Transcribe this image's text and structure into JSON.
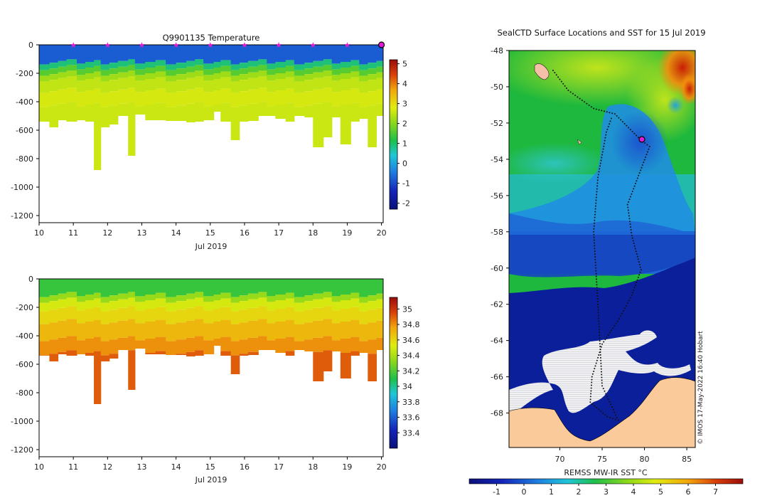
{
  "chart_data": [
    {
      "type": "heatmap",
      "title": "Q9901135  Temperature",
      "xlabel": "Jul 2019",
      "x_ticks": [
        10,
        11,
        12,
        13,
        14,
        15,
        16,
        17,
        18,
        19,
        20
      ],
      "xlim": [
        10,
        20.05
      ],
      "ylim": [
        -1250,
        0
      ],
      "y_ticks": [
        0,
        -200,
        -400,
        -600,
        -800,
        -1000,
        -1200
      ],
      "colorbar": {
        "ticks": [
          5,
          4,
          3,
          2,
          1,
          0,
          -1,
          -2
        ],
        "range": [
          -2.3,
          5.2
        ]
      },
      "surface_value": -0.8,
      "layers": [
        {
          "top": 0,
          "bottom": -120,
          "value": -0.8
        },
        {
          "top": -120,
          "bottom": -160,
          "value": 0.9
        },
        {
          "top": -160,
          "bottom": -200,
          "value": 1.6
        },
        {
          "top": -200,
          "bottom": -240,
          "value": 2.2
        },
        {
          "top": -240,
          "bottom": -320,
          "value": 2.5
        },
        {
          "top": -320,
          "bottom": -420,
          "value": 2.7
        },
        {
          "top": -420,
          "bottom": -2000,
          "value": 2.6
        }
      ],
      "profile_times": [
        10,
        10.3,
        10.55,
        10.8,
        11.1,
        11.35,
        11.6,
        11.8,
        12.05,
        12.3,
        12.6,
        12.8,
        13.1,
        13.4,
        13.7,
        14,
        14.3,
        14.55,
        14.8,
        15.1,
        15.3,
        15.6,
        15.85,
        16.1,
        16.4,
        16.65,
        16.9,
        17.2,
        17.45,
        17.75,
        18,
        18.3,
        18.55,
        18.8,
        19.1,
        19.35,
        19.6,
        19.85,
        20.05
      ],
      "profile_depths": [
        540,
        580,
        530,
        540,
        530,
        540,
        880,
        580,
        560,
        500,
        780,
        490,
        530,
        530,
        535,
        535,
        545,
        540,
        530,
        470,
        540,
        670,
        540,
        535,
        500,
        500,
        520,
        540,
        500,
        510,
        720,
        650,
        510,
        700,
        540,
        520,
        720,
        500,
        500
      ],
      "markers": [
        11,
        12,
        13,
        14,
        15,
        16,
        17,
        18,
        19
      ],
      "current_marker": 20
    },
    {
      "type": "heatmap",
      "title": "",
      "xlabel": "Jul 2019",
      "x_ticks": [
        10,
        11,
        12,
        13,
        14,
        15,
        16,
        17,
        18,
        19,
        20
      ],
      "xlim": [
        10,
        20.05
      ],
      "ylim": [
        -1250,
        0
      ],
      "y_ticks": [
        0,
        -200,
        -400,
        -600,
        -800,
        -1000,
        -1200
      ],
      "colorbar": {
        "ticks": [
          35,
          34.8,
          34.6,
          34.4,
          34.2,
          34,
          33.8,
          33.6,
          33.4
        ],
        "range": [
          33.2,
          35.15
        ]
      },
      "layers": [
        {
          "top": 0,
          "bottom": -110,
          "value": 34.15
        },
        {
          "top": -110,
          "bottom": -150,
          "value": 34.35
        },
        {
          "top": -150,
          "bottom": -210,
          "value": 34.5
        },
        {
          "top": -210,
          "bottom": -300,
          "value": 34.6
        },
        {
          "top": -300,
          "bottom": -420,
          "value": 34.7
        },
        {
          "top": -420,
          "bottom": -520,
          "value": 34.8
        },
        {
          "top": -520,
          "bottom": -2000,
          "value": 34.9
        }
      ],
      "profile_times": [
        10,
        10.3,
        10.55,
        10.8,
        11.1,
        11.35,
        11.6,
        11.8,
        12.05,
        12.3,
        12.6,
        12.8,
        13.1,
        13.4,
        13.7,
        14,
        14.3,
        14.55,
        14.8,
        15.1,
        15.3,
        15.6,
        15.85,
        16.1,
        16.4,
        16.65,
        16.9,
        17.2,
        17.45,
        17.75,
        18,
        18.3,
        18.55,
        18.8,
        19.1,
        19.35,
        19.6,
        19.85,
        20.05
      ],
      "profile_depths": [
        540,
        580,
        530,
        540,
        530,
        540,
        880,
        580,
        560,
        500,
        780,
        490,
        530,
        530,
        535,
        535,
        545,
        540,
        530,
        470,
        540,
        670,
        540,
        535,
        500,
        500,
        520,
        540,
        500,
        510,
        720,
        650,
        510,
        700,
        540,
        520,
        720,
        500,
        500
      ]
    },
    {
      "type": "heatmap",
      "title": "SealCTD Surface Locations and SST for 15 Jul 2019",
      "xlabel": "",
      "x_ticks": [
        70,
        75,
        80,
        85
      ],
      "y_ticks": [
        -48,
        -50,
        -52,
        -54,
        -56,
        -58,
        -60,
        -62,
        -64,
        -66,
        -68
      ],
      "xlim": [
        64,
        86
      ],
      "ylim": [
        -69.9,
        -48
      ],
      "colorbar": {
        "label": "REMSS MW-IR SST °C",
        "ticks": [
          -1,
          0,
          1,
          2,
          3,
          4,
          5,
          6,
          7
        ],
        "range": [
          -2,
          8
        ]
      },
      "credit": "© IMOS 17-May-2022 16:40 Hobart",
      "track_waypoints": [
        [
          69.2,
          -49.1
        ],
        [
          71,
          -50.2
        ],
        [
          74,
          -51.2
        ],
        [
          76.5,
          -51.5
        ],
        [
          79.5,
          -52.9
        ],
        [
          80.6,
          -53.3
        ],
        [
          78,
          -56.5
        ],
        [
          78.5,
          -58.2
        ],
        [
          79.6,
          -60.1
        ],
        [
          78.5,
          -61.5
        ],
        [
          77,
          -62.8
        ],
        [
          75,
          -64.2
        ],
        [
          73.8,
          -66
        ],
        [
          73.6,
          -67.4
        ],
        [
          75.6,
          -68.2
        ],
        [
          76.9,
          -68.4
        ],
        [
          75,
          -66.5
        ],
        [
          74.5,
          -62
        ],
        [
          74,
          -58
        ],
        [
          74.5,
          -55
        ],
        [
          75.5,
          -52.5
        ],
        [
          76.2,
          -51.6
        ]
      ],
      "current_position": [
        79.7,
        -52.9
      ]
    }
  ]
}
